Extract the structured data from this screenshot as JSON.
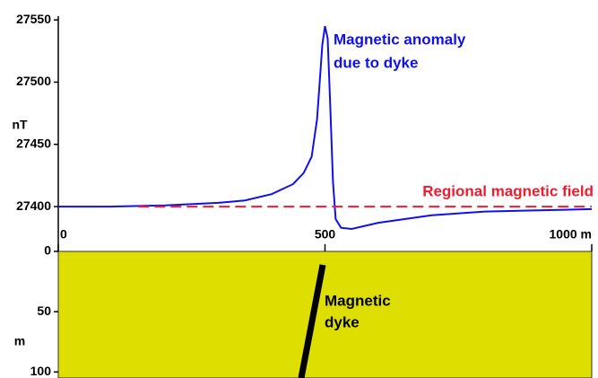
{
  "chart_data": [
    {
      "type": "line",
      "ylabel": "nT",
      "xlim": [
        0,
        1000
      ],
      "xticks": [
        0,
        500,
        {
          "value": 1000,
          "label": "1000 m"
        }
      ],
      "ylim": [
        27364,
        27553
      ],
      "yticks": [
        27400,
        27450,
        27500,
        27550
      ],
      "series": [
        {
          "name": "Magnetic anomaly due to dyke",
          "name_lines": [
            "Magnetic anomaly",
            "due to dyke"
          ],
          "color": "#1010ee",
          "style": "solid",
          "x": [
            0,
            100,
            200,
            300,
            350,
            400,
            440,
            460,
            475,
            485,
            490,
            495,
            500,
            505,
            510,
            515,
            520,
            530,
            550,
            600,
            700,
            800,
            900,
            1000
          ],
          "values": [
            27400,
            27400,
            27401,
            27403,
            27405,
            27410,
            27418,
            27427,
            27440,
            27470,
            27500,
            27530,
            27545,
            27535,
            27480,
            27420,
            27390,
            27383,
            27382,
            27387,
            27393,
            27396,
            27397,
            27398
          ]
        },
        {
          "name": "Regional magnetic field",
          "color": "#ee1c2e",
          "style": "dashed",
          "x": [
            150,
            1000
          ],
          "values": [
            27400,
            27400
          ]
        }
      ]
    },
    {
      "type": "section",
      "ylabel": "m",
      "ylim": [
        0,
        105
      ],
      "yticks": [
        0,
        50,
        100
      ],
      "color": "#dede00",
      "label_lines": [
        "Magnetic",
        "dyke"
      ]
    }
  ]
}
